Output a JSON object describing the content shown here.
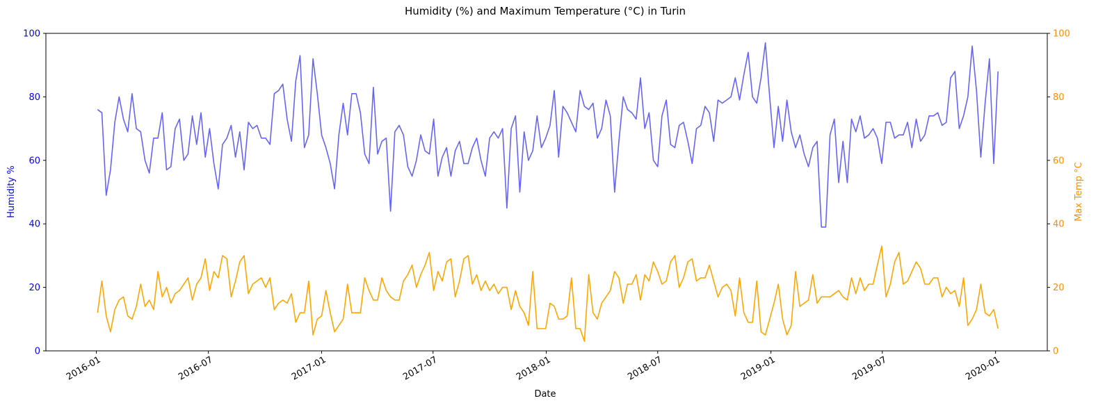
{
  "chart_data": {
    "type": "line",
    "title": "Humidity (%) and Maximum Temperature (°C) in Turin",
    "xlabel": "Date",
    "ylabel_left": "Humidity %",
    "ylabel_right": "Max Temp °C",
    "ylim_left": [
      0,
      100
    ],
    "ylim_right": [
      0,
      100
    ],
    "yticks": [
      0,
      20,
      40,
      60,
      80,
      100
    ],
    "xlim": [
      "2015-10-11",
      "2020-03-25"
    ],
    "xticks": [
      "2016-01",
      "2016-07",
      "2017-01",
      "2017-07",
      "2018-01",
      "2018-07",
      "2019-01",
      "2019-07",
      "2020-01"
    ],
    "xtick_dates": [
      "2016-01-01",
      "2016-07-01",
      "2017-01-01",
      "2017-07-01",
      "2018-01-01",
      "2018-07-01",
      "2019-01-01",
      "2019-07-01",
      "2020-01-01"
    ],
    "grid": false,
    "colors": {
      "humidity": "#6464f5",
      "temperature": "#ffa500",
      "left_axis": "#0000ff",
      "right_axis": "#ff8c00"
    },
    "x": [
      "2016-01-03",
      "2016-01-10",
      "2016-01-17",
      "2016-01-24",
      "2016-01-31",
      "2016-02-07",
      "2016-02-14",
      "2016-02-21",
      "2016-02-28",
      "2016-03-06",
      "2016-03-13",
      "2016-03-20",
      "2016-03-27",
      "2016-04-03",
      "2016-04-10",
      "2016-04-17",
      "2016-04-24",
      "2016-05-01",
      "2016-05-08",
      "2016-05-15",
      "2016-05-22",
      "2016-05-29",
      "2016-06-05",
      "2016-06-12",
      "2016-06-19",
      "2016-06-26",
      "2016-07-03",
      "2016-07-10",
      "2016-07-17",
      "2016-07-24",
      "2016-07-31",
      "2016-08-07",
      "2016-08-14",
      "2016-08-21",
      "2016-08-28",
      "2016-09-04",
      "2016-09-11",
      "2016-09-18",
      "2016-09-25",
      "2016-10-02",
      "2016-10-09",
      "2016-10-16",
      "2016-10-23",
      "2016-10-30",
      "2016-11-06",
      "2016-11-13",
      "2016-11-20",
      "2016-11-27",
      "2016-12-04",
      "2016-12-11",
      "2016-12-18",
      "2016-12-25",
      "2017-01-01",
      "2017-01-08",
      "2017-01-15",
      "2017-01-22",
      "2017-01-29",
      "2017-02-05",
      "2017-02-12",
      "2017-02-19",
      "2017-02-26",
      "2017-03-05",
      "2017-03-12",
      "2017-03-19",
      "2017-03-26",
      "2017-04-02",
      "2017-04-09",
      "2017-04-16",
      "2017-04-23",
      "2017-04-30",
      "2017-05-07",
      "2017-05-14",
      "2017-05-21",
      "2017-05-28",
      "2017-06-04",
      "2017-06-11",
      "2017-06-18",
      "2017-06-25",
      "2017-07-02",
      "2017-07-09",
      "2017-07-16",
      "2017-07-23",
      "2017-07-30",
      "2017-08-06",
      "2017-08-13",
      "2017-08-20",
      "2017-08-27",
      "2017-09-03",
      "2017-09-10",
      "2017-09-17",
      "2017-09-24",
      "2017-10-01",
      "2017-10-08",
      "2017-10-15",
      "2017-10-22",
      "2017-10-29",
      "2017-11-05",
      "2017-11-12",
      "2017-11-19",
      "2017-11-26",
      "2017-12-03",
      "2017-12-10",
      "2017-12-17",
      "2017-12-24",
      "2017-12-31",
      "2018-01-07",
      "2018-01-14",
      "2018-01-21",
      "2018-01-28",
      "2018-02-04",
      "2018-02-11",
      "2018-02-18",
      "2018-02-25",
      "2018-03-04",
      "2018-03-11",
      "2018-03-18",
      "2018-03-25",
      "2018-04-01",
      "2018-04-08",
      "2018-04-15",
      "2018-04-22",
      "2018-04-29",
      "2018-05-06",
      "2018-05-13",
      "2018-05-20",
      "2018-05-27",
      "2018-06-03",
      "2018-06-10",
      "2018-06-17",
      "2018-06-24",
      "2018-07-01",
      "2018-07-08",
      "2018-07-15",
      "2018-07-22",
      "2018-07-29",
      "2018-08-05",
      "2018-08-12",
      "2018-08-19",
      "2018-08-26",
      "2018-09-02",
      "2018-09-09",
      "2018-09-16",
      "2018-09-23",
      "2018-09-30",
      "2018-10-07",
      "2018-10-14",
      "2018-10-21",
      "2018-10-28",
      "2018-11-04",
      "2018-11-11",
      "2018-11-18",
      "2018-11-25",
      "2018-12-02",
      "2018-12-09",
      "2018-12-16",
      "2018-12-23",
      "2018-12-30",
      "2019-01-06",
      "2019-01-13",
      "2019-01-20",
      "2019-01-27",
      "2019-02-03",
      "2019-02-10",
      "2019-02-17",
      "2019-02-24",
      "2019-03-03",
      "2019-03-10",
      "2019-03-17",
      "2019-03-24",
      "2019-03-31",
      "2019-04-07",
      "2019-04-14",
      "2019-04-21",
      "2019-04-28",
      "2019-05-05",
      "2019-05-12",
      "2019-05-19",
      "2019-05-26",
      "2019-06-02",
      "2019-06-09",
      "2019-06-16",
      "2019-06-23",
      "2019-06-30",
      "2019-07-07",
      "2019-07-14",
      "2019-07-21",
      "2019-07-28",
      "2019-08-04",
      "2019-08-11",
      "2019-08-18",
      "2019-08-25",
      "2019-09-01",
      "2019-09-08",
      "2019-09-15",
      "2019-09-22",
      "2019-09-29",
      "2019-10-06",
      "2019-10-13",
      "2019-10-20",
      "2019-10-27",
      "2019-11-03",
      "2019-11-10",
      "2019-11-17",
      "2019-11-24",
      "2019-12-01",
      "2019-12-08",
      "2019-12-15",
      "2019-12-22",
      "2019-12-29",
      "2020-01-05"
    ],
    "series": [
      {
        "axis": "left",
        "values": [
          76,
          75,
          49,
          57,
          72,
          80,
          73,
          69,
          81,
          70,
          69,
          60,
          56,
          67,
          67,
          75,
          57,
          58,
          70,
          73,
          60,
          62,
          74,
          65,
          75,
          61,
          70,
          59,
          51,
          65,
          67,
          71,
          61,
          69,
          57,
          72,
          70,
          71,
          67,
          67,
          65,
          81,
          82,
          84,
          73,
          66,
          85,
          93,
          64,
          68,
          92,
          81,
          68,
          64,
          59,
          51,
          68,
          78,
          68,
          81,
          81,
          75,
          62,
          59,
          83,
          62,
          66,
          67,
          44,
          69,
          71,
          68,
          58,
          55,
          60,
          68,
          63,
          62,
          73,
          55,
          61,
          64,
          55,
          63,
          66,
          59,
          59,
          64,
          67,
          60,
          55,
          67,
          69,
          67,
          70,
          45,
          70,
          74,
          50,
          69,
          60,
          63,
          74,
          64,
          67,
          71,
          82,
          61,
          77,
          75,
          72,
          69,
          82,
          77,
          76,
          78,
          67,
          70,
          79,
          74,
          50,
          66,
          80,
          76,
          75,
          73,
          86,
          70,
          75,
          60,
          58,
          74,
          79,
          65,
          64,
          71,
          72,
          66,
          59,
          70,
          71,
          77,
          75,
          66,
          79,
          78,
          79,
          80,
          86,
          79,
          87,
          94,
          80,
          78,
          86,
          97,
          80,
          64,
          77,
          66,
          79,
          69,
          64,
          68,
          62,
          58,
          64,
          66,
          39,
          39,
          68,
          73,
          53,
          66,
          53,
          73,
          69,
          74,
          67,
          68,
          70,
          67,
          59,
          72,
          72,
          67,
          68,
          68,
          72,
          64,
          73,
          66,
          68,
          74,
          74,
          75,
          71,
          72,
          86,
          88,
          70,
          74,
          80,
          96,
          82,
          61,
          78,
          92,
          59,
          88
        ]
      },
      {
        "axis": "right",
        "values": [
          12,
          22,
          11,
          6,
          13,
          16,
          17,
          11,
          10,
          14,
          21,
          14,
          16,
          13,
          25,
          17,
          20,
          15,
          18,
          19,
          21,
          23,
          16,
          21,
          23,
          29,
          19,
          25,
          23,
          30,
          29,
          17,
          22,
          28,
          30,
          18,
          21,
          22,
          23,
          20,
          23,
          13,
          15,
          16,
          15,
          18,
          9,
          12,
          12,
          22,
          5,
          10,
          11,
          19,
          12,
          6,
          8,
          10,
          21,
          12,
          12,
          12,
          23,
          19,
          16,
          16,
          23,
          19,
          17,
          16,
          16,
          22,
          24,
          27,
          20,
          24,
          27,
          31,
          19,
          25,
          22,
          28,
          29,
          17,
          22,
          29,
          30,
          21,
          24,
          19,
          22,
          19,
          21,
          18,
          20,
          20,
          13,
          19,
          14,
          12,
          8,
          25,
          7,
          7,
          7,
          15,
          14,
          10,
          10,
          11,
          23,
          7,
          7,
          3,
          24,
          12,
          10,
          15,
          17,
          19,
          25,
          23,
          15,
          21,
          21,
          24,
          16,
          24,
          22,
          28,
          25,
          21,
          22,
          28,
          30,
          20,
          23,
          28,
          29,
          22,
          23,
          23,
          27,
          22,
          17,
          20,
          21,
          19,
          11,
          23,
          12,
          9,
          9,
          22,
          6,
          5,
          10,
          15,
          21,
          10,
          5,
          8,
          25,
          14,
          15,
          16,
          24,
          15,
          17,
          17,
          17,
          18,
          19,
          17,
          16,
          23,
          18,
          23,
          19,
          21,
          21,
          27,
          33,
          17,
          21,
          28,
          31,
          21,
          22,
          25,
          28,
          26,
          21,
          21,
          23,
          23,
          17,
          20,
          18,
          19,
          14,
          23,
          8,
          10,
          13,
          21,
          12,
          11,
          13,
          7
        ]
      }
    ]
  }
}
